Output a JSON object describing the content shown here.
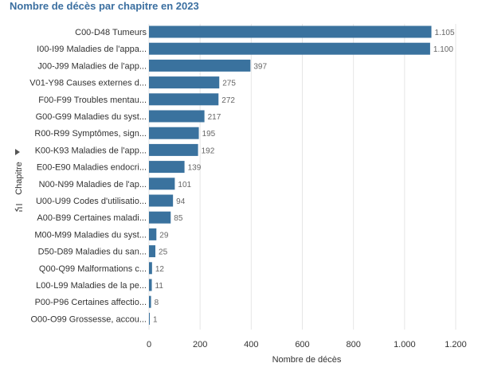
{
  "chart_data": {
    "type": "bar",
    "orientation": "horizontal",
    "title": "Nombre de décès par chapitre en 2023",
    "xlabel": "Nombre de décès",
    "ylabel": "Chapitre",
    "xlim": [
      0,
      1200
    ],
    "xticks": [
      0,
      200,
      400,
      600,
      800,
      1000,
      1200
    ],
    "xtick_labels": [
      "0",
      "200",
      "400",
      "600",
      "800",
      "1.000",
      "1.200"
    ],
    "grid": true,
    "bar_color": "#3a729e",
    "categories": [
      "C00-D48 Tumeurs",
      "I00-I99 Maladies de l'appa...",
      "J00-J99 Maladies de l'app...",
      "V01-Y98 Causes externes d...",
      "F00-F99 Troubles mentau...",
      "G00-G99 Maladies du syst...",
      "R00-R99 Symptômes, sign...",
      "K00-K93 Maladies de l'app...",
      "E00-E90 Maladies endocri...",
      "N00-N99 Maladies de l'ap...",
      "U00-U99 Codes d'utilisatio...",
      "A00-B99 Certaines maladi...",
      "M00-M99 Maladies du syst...",
      "D50-D89 Maladies du san...",
      "Q00-Q99 Malformations c...",
      "L00-L99 Maladies de la pe...",
      "P00-P96 Certaines affectio...",
      "O00-O99 Grossesse, accou..."
    ],
    "values": [
      1105,
      1100,
      397,
      275,
      272,
      217,
      195,
      192,
      139,
      101,
      94,
      85,
      29,
      25,
      12,
      11,
      8,
      1
    ],
    "value_labels": [
      "1.105",
      "1.100",
      "397",
      "275",
      "272",
      "217",
      "195",
      "192",
      "139",
      "101",
      "94",
      "85",
      "29",
      "25",
      "12",
      "11",
      "8",
      "1"
    ]
  },
  "icons": {
    "axis_sort": "sort-icon",
    "axis_expand": "triangle-right-icon"
  }
}
